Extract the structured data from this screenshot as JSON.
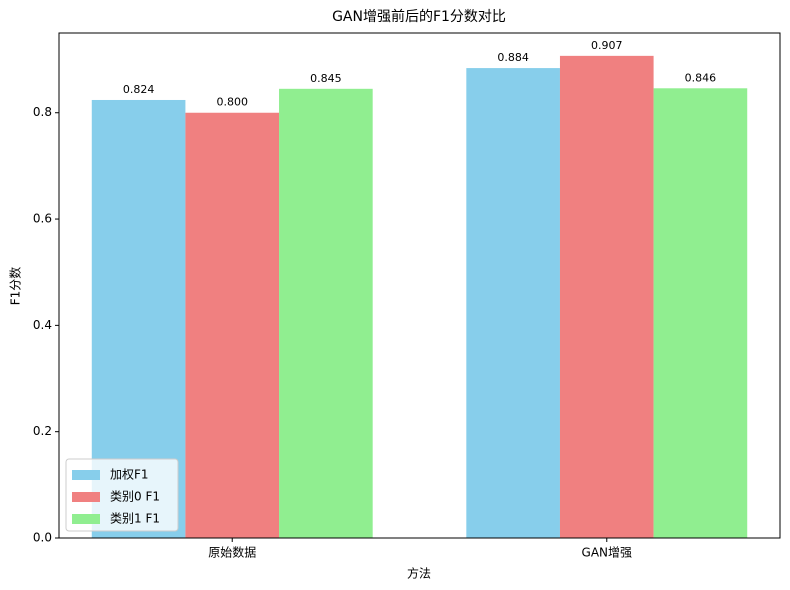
{
  "chart_data": {
    "type": "bar",
    "title": "GAN增强前后的F1分数对比",
    "x_label": "方法",
    "y_label": "F1分数",
    "categories": [
      "原始数据",
      "GAN增强"
    ],
    "series": [
      {
        "name": "加权F1",
        "color": "#87ceeb",
        "values": [
          0.824,
          0.884
        ],
        "value_labels": [
          "0.824",
          "0.884"
        ]
      },
      {
        "name": "类别0 F1",
        "color": "#f08080",
        "values": [
          0.8,
          0.907
        ],
        "value_labels": [
          "0.800",
          "0.907"
        ]
      },
      {
        "name": "类别1 F1",
        "color": "#90ee90",
        "values": [
          0.845,
          0.846
        ],
        "value_labels": [
          "0.845",
          "0.846"
        ]
      }
    ],
    "ylim": [
      0,
      0.95
    ],
    "yticks": [
      {
        "value": 0,
        "label": "0.0"
      },
      0.2,
      0.4,
      0.6,
      0.8
    ],
    "grid": false,
    "legend": "lower left"
  }
}
